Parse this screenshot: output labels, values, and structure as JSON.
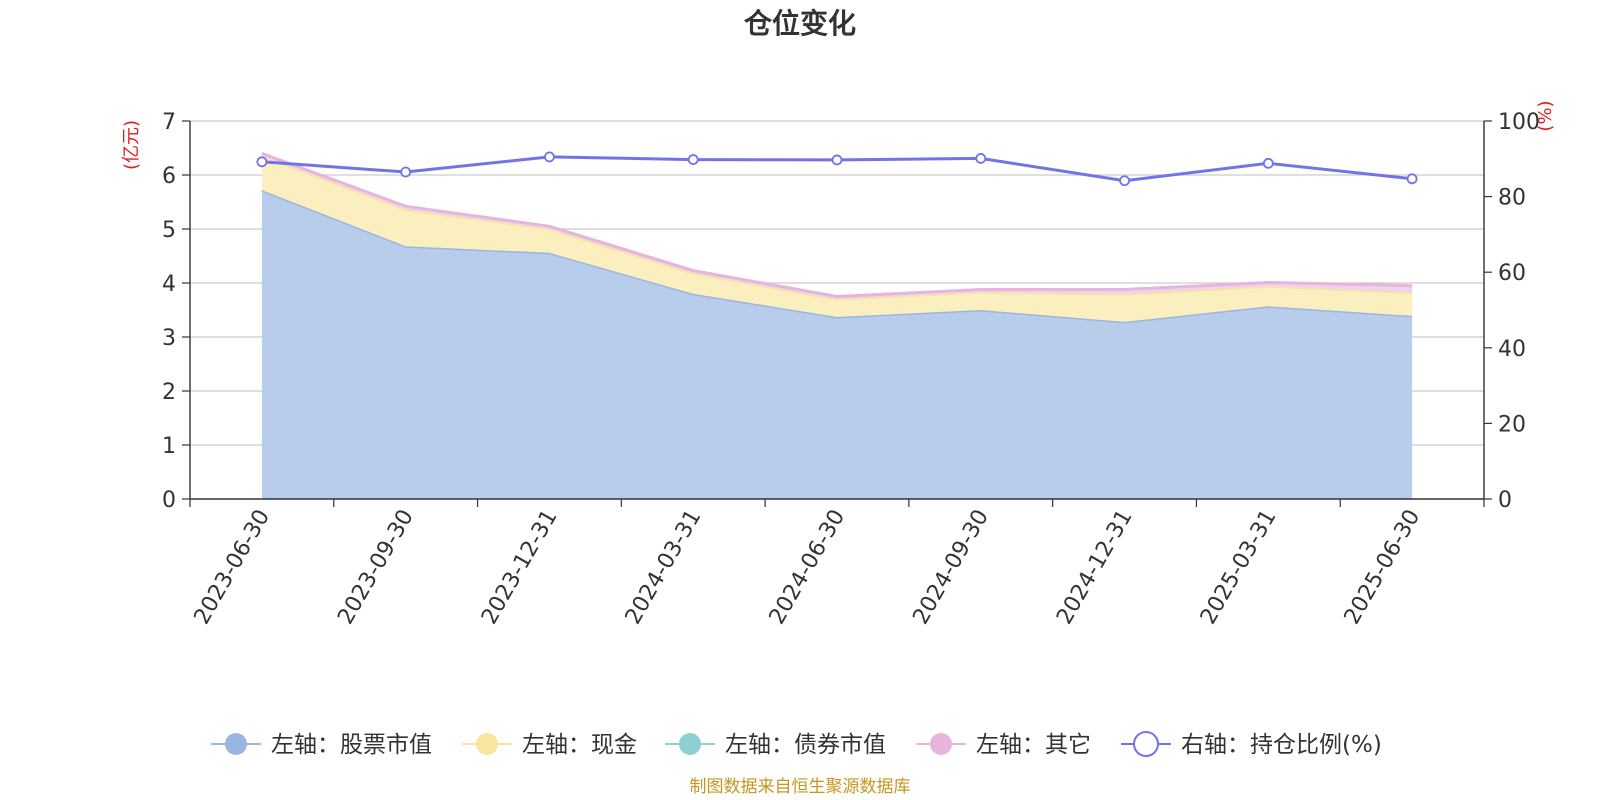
{
  "chart_data": {
    "type": "area",
    "title": "仓位变化",
    "categories": [
      "2023-06-30",
      "2023-09-30",
      "2023-12-31",
      "2024-03-31",
      "2024-06-30",
      "2024-09-30",
      "2024-12-31",
      "2025-03-31",
      "2025-06-30"
    ],
    "left_axis": {
      "unit": "(亿元)",
      "ylim": [
        0,
        7
      ],
      "ticks": [
        "0",
        "1",
        "2",
        "3",
        "4",
        "5",
        "6",
        "7"
      ]
    },
    "right_axis": {
      "unit": "(%)",
      "ylim": [
        0,
        100
      ],
      "ticks": [
        "0",
        "20",
        "40",
        "60",
        "80",
        "100"
      ]
    },
    "grid": true,
    "legend_position": "bottom",
    "stacked": true,
    "series": [
      {
        "name": "左轴：股票市值",
        "axis": "left",
        "type": "area",
        "color": "#9ab6e0",
        "fill": "#b8cdeb",
        "values": [
          5.72,
          4.68,
          4.56,
          3.8,
          3.37,
          3.5,
          3.28,
          3.57,
          3.39
        ]
      },
      {
        "name": "左轴：现金",
        "axis": "left",
        "type": "area",
        "color": "#f7e6a0",
        "fill": "#fbefc0",
        "values": [
          0.63,
          0.68,
          0.44,
          0.38,
          0.33,
          0.33,
          0.51,
          0.37,
          0.43
        ]
      },
      {
        "name": "左轴：债券市值",
        "axis": "left",
        "type": "area",
        "color": "#8ecfd2",
        "fill": "#8ecfd2",
        "values": [
          0,
          0,
          0,
          0,
          0,
          0,
          0,
          0,
          0
        ]
      },
      {
        "name": "左轴：其它",
        "axis": "left",
        "type": "area",
        "color": "#e6b4dc",
        "fill": "#f0d2ea",
        "values": [
          0.05,
          0.06,
          0.05,
          0.05,
          0.05,
          0.05,
          0.09,
          0.07,
          0.13
        ]
      },
      {
        "name": "右轴：持仓比例(%)",
        "axis": "right",
        "type": "line",
        "color": "#7373e8",
        "values": [
          89.2,
          86.5,
          90.5,
          89.8,
          89.7,
          90.1,
          84.2,
          88.8,
          84.7
        ]
      }
    ]
  },
  "footer": "制图数据来自恒生聚源数据库",
  "colors": {
    "unit": "#e02020",
    "footer": "#c8961e",
    "axis": "#333333",
    "grid": "#cccccc"
  }
}
